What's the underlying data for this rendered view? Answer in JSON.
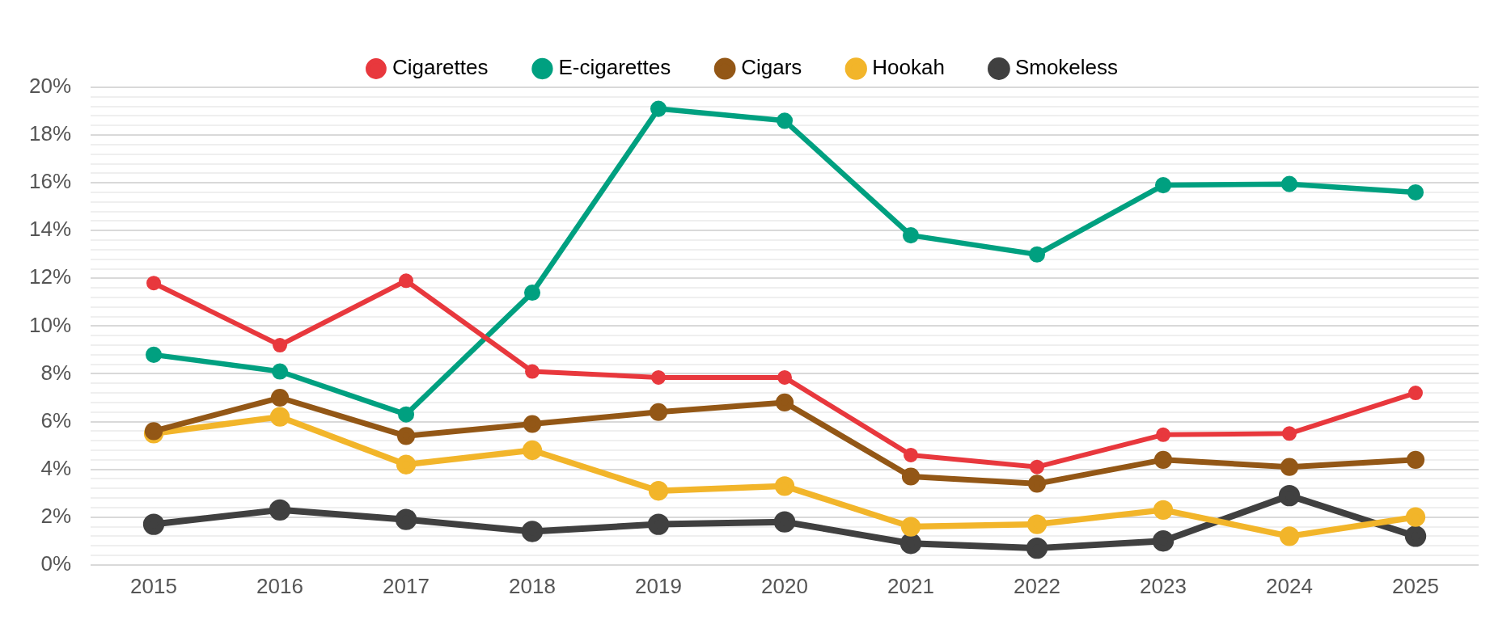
{
  "chart_data": {
    "type": "line",
    "categories": [
      "2015",
      "2016",
      "2017",
      "2018",
      "2019",
      "2020",
      "2021",
      "2022",
      "2023",
      "2024",
      "2025"
    ],
    "series": [
      {
        "name": "Cigarettes",
        "color": "#e8383d",
        "values": [
          11.8,
          9.2,
          11.9,
          8.1,
          7.85,
          7.85,
          4.6,
          4.1,
          5.45,
          5.5,
          7.2
        ]
      },
      {
        "name": "E-cigarettes",
        "color": "#00a080",
        "values": [
          8.8,
          8.1,
          6.3,
          11.4,
          19.1,
          18.6,
          13.8,
          13.0,
          15.9,
          15.95,
          15.6
        ]
      },
      {
        "name": "Cigars",
        "color": "#935716",
        "values": [
          5.6,
          7.0,
          5.4,
          5.9,
          6.4,
          6.8,
          3.7,
          3.4,
          4.4,
          4.1,
          4.4
        ]
      },
      {
        "name": "Hookah",
        "color": "#f2b52a",
        "values": [
          5.5,
          6.2,
          4.2,
          4.8,
          3.1,
          3.3,
          1.6,
          1.7,
          2.3,
          1.2,
          2.0
        ]
      },
      {
        "name": "Smokeless",
        "color": "#404040",
        "values": [
          1.7,
          2.3,
          1.9,
          1.4,
          1.7,
          1.8,
          0.9,
          0.7,
          1.0,
          2.9,
          1.2
        ]
      }
    ],
    "ylim": [
      0,
      20
    ],
    "yticks": [
      {
        "value": 0,
        "label": "0%"
      },
      {
        "value": 0.4,
        "label": null
      },
      {
        "value": 0.8,
        "label": null
      },
      {
        "value": 1.2,
        "label": null
      },
      {
        "value": 1.6,
        "label": null
      },
      {
        "value": 2,
        "label": "2%"
      },
      {
        "value": 2.4,
        "label": null
      },
      {
        "value": 2.8,
        "label": null
      },
      {
        "value": 3.2,
        "label": null
      },
      {
        "value": 3.6,
        "label": null
      },
      {
        "value": 4,
        "label": "4%"
      },
      {
        "value": 4.4,
        "label": null
      },
      {
        "value": 4.8,
        "label": null
      },
      {
        "value": 5.2,
        "label": null
      },
      {
        "value": 5.6,
        "label": null
      },
      {
        "value": 6,
        "label": "6%"
      },
      {
        "value": 6.4,
        "label": null
      },
      {
        "value": 6.8,
        "label": null
      },
      {
        "value": 7.2,
        "label": null
      },
      {
        "value": 7.6,
        "label": null
      },
      {
        "value": 8,
        "label": "8%"
      },
      {
        "value": 8.4,
        "label": null
      },
      {
        "value": 8.8,
        "label": null
      },
      {
        "value": 9.2,
        "label": null
      },
      {
        "value": 9.6,
        "label": null
      },
      {
        "value": 10,
        "label": "10%"
      },
      {
        "value": 10.4,
        "label": null
      },
      {
        "value": 10.8,
        "label": null
      },
      {
        "value": 11.2,
        "label": null
      },
      {
        "value": 11.6,
        "label": null
      },
      {
        "value": 12,
        "label": "12%"
      },
      {
        "value": 12.4,
        "label": null
      },
      {
        "value": 12.8,
        "label": null
      },
      {
        "value": 13.2,
        "label": null
      },
      {
        "value": 13.6,
        "label": null
      },
      {
        "value": 14,
        "label": "14%"
      },
      {
        "value": 14.4,
        "label": null
      },
      {
        "value": 14.8,
        "label": null
      },
      {
        "value": 15.2,
        "label": null
      },
      {
        "value": 15.6,
        "label": null
      },
      {
        "value": 16,
        "label": "16%"
      },
      {
        "value": 16.4,
        "label": null
      },
      {
        "value": 16.8,
        "label": null
      },
      {
        "value": 17.2,
        "label": null
      },
      {
        "value": 17.6,
        "label": null
      },
      {
        "value": 18,
        "label": "18%"
      },
      {
        "value": 18.4,
        "label": null
      },
      {
        "value": 18.8,
        "label": null
      },
      {
        "value": 19.2,
        "label": null
      },
      {
        "value": 19.6,
        "label": null
      },
      {
        "value": 20,
        "label": "20%"
      }
    ],
    "grid": "y",
    "legend": "top",
    "marker": "circle",
    "line_style": "solid"
  }
}
